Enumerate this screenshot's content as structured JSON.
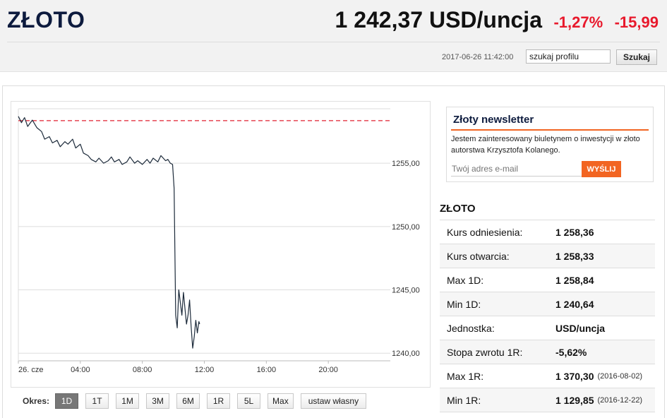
{
  "header": {
    "asset_name": "ZŁOTO",
    "price": "1 242,37 USD/uncja",
    "change_pct": "-1,27%",
    "change_abs": "-15,99",
    "timestamp": "2017-06-26 11:42:00",
    "search_value": "szukaj profilu",
    "search_button": "Szukaj"
  },
  "colors": {
    "negative": "#e8192c",
    "accent": "#f26522",
    "brand": "#0d1b3e",
    "line": "#1c2a3a",
    "reference_line": "#e02030"
  },
  "chart_data": {
    "type": "line",
    "title": "",
    "xlabel": "",
    "ylabel": "",
    "x_ticks": [
      "26. cze",
      "04:00",
      "08:00",
      "12:00",
      "16:00",
      "20:00"
    ],
    "y_ticks": [
      "1240,00",
      "1245,00",
      "1250,00",
      "1255,00"
    ],
    "xlim_hours": [
      0,
      24
    ],
    "ylim": [
      1239.4,
      1259.3
    ],
    "reference_value": 1258.36,
    "grid": "horizontal",
    "series": [
      {
        "x": [
          0.0,
          0.2,
          0.4,
          0.6,
          0.9,
          1.2,
          1.5,
          1.7,
          2.0,
          2.2,
          2.5,
          2.7,
          3.0,
          3.2,
          3.5,
          3.7,
          4.0,
          4.2,
          4.5,
          4.7,
          5.0,
          5.2,
          5.5,
          5.8,
          6.0,
          6.2,
          6.5,
          6.7,
          7.0,
          7.2,
          7.5,
          7.7,
          8.0,
          8.3,
          8.5,
          8.7,
          9.0,
          9.2,
          9.5,
          9.65,
          9.8,
          9.95,
          10.05,
          10.1,
          10.15,
          10.25,
          10.35,
          10.45,
          10.55,
          10.65,
          10.75,
          10.85,
          10.95,
          11.05,
          11.15,
          11.25,
          11.35,
          11.45,
          11.55,
          11.65,
          11.7
        ],
        "y": [
          1258.7,
          1258.2,
          1258.6,
          1257.9,
          1258.4,
          1257.8,
          1257.5,
          1256.9,
          1257.1,
          1256.6,
          1256.8,
          1256.3,
          1256.7,
          1256.5,
          1256.9,
          1256.2,
          1256.5,
          1255.8,
          1255.6,
          1255.3,
          1255.1,
          1255.4,
          1255.0,
          1255.2,
          1255.5,
          1255.1,
          1255.3,
          1254.9,
          1255.1,
          1255.5,
          1255.0,
          1255.2,
          1254.9,
          1255.3,
          1255.0,
          1255.4,
          1255.1,
          1255.6,
          1255.2,
          1255.3,
          1255.0,
          1254.9,
          1253.0,
          1248.0,
          1243.0,
          1242.0,
          1245.0,
          1244.0,
          1243.0,
          1244.8,
          1243.5,
          1242.3,
          1243.0,
          1244.2,
          1242.1,
          1240.4,
          1241.3,
          1242.6,
          1241.6,
          1242.5,
          1242.3
        ]
      }
    ]
  },
  "periods": {
    "label": "Okres:",
    "items": [
      "1D",
      "1T",
      "1M",
      "3M",
      "6M",
      "1R",
      "5L",
      "Max",
      "ustaw własny"
    ],
    "active": "1D"
  },
  "newsletter": {
    "title": "Złoty newsletter",
    "text": "Jestem zainteresowany biuletynem o inwestycji w złoto autorstwa Krzysztofa Kolanego.",
    "placeholder": "Twój adres e-mail",
    "button": "WYŚLIJ"
  },
  "info": {
    "title": "ZŁOTO",
    "rows": [
      {
        "label": "Kurs odniesienia:",
        "value": "1 258,36"
      },
      {
        "label": "Kurs otwarcia:",
        "value": "1 258,33"
      },
      {
        "label": "Max 1D:",
        "value": "1 258,84"
      },
      {
        "label": "Min 1D:",
        "value": "1 240,64"
      },
      {
        "label": "Jednostka:",
        "value": "USD/uncja"
      },
      {
        "label": "Stopa zwrotu 1R:",
        "value": "-5,62%"
      },
      {
        "label": "Max 1R:",
        "value": "1 370,30",
        "note": "(2016-08-02)"
      },
      {
        "label": "Min 1R:",
        "value": "1 129,85",
        "note": "(2016-12-22)"
      }
    ]
  }
}
